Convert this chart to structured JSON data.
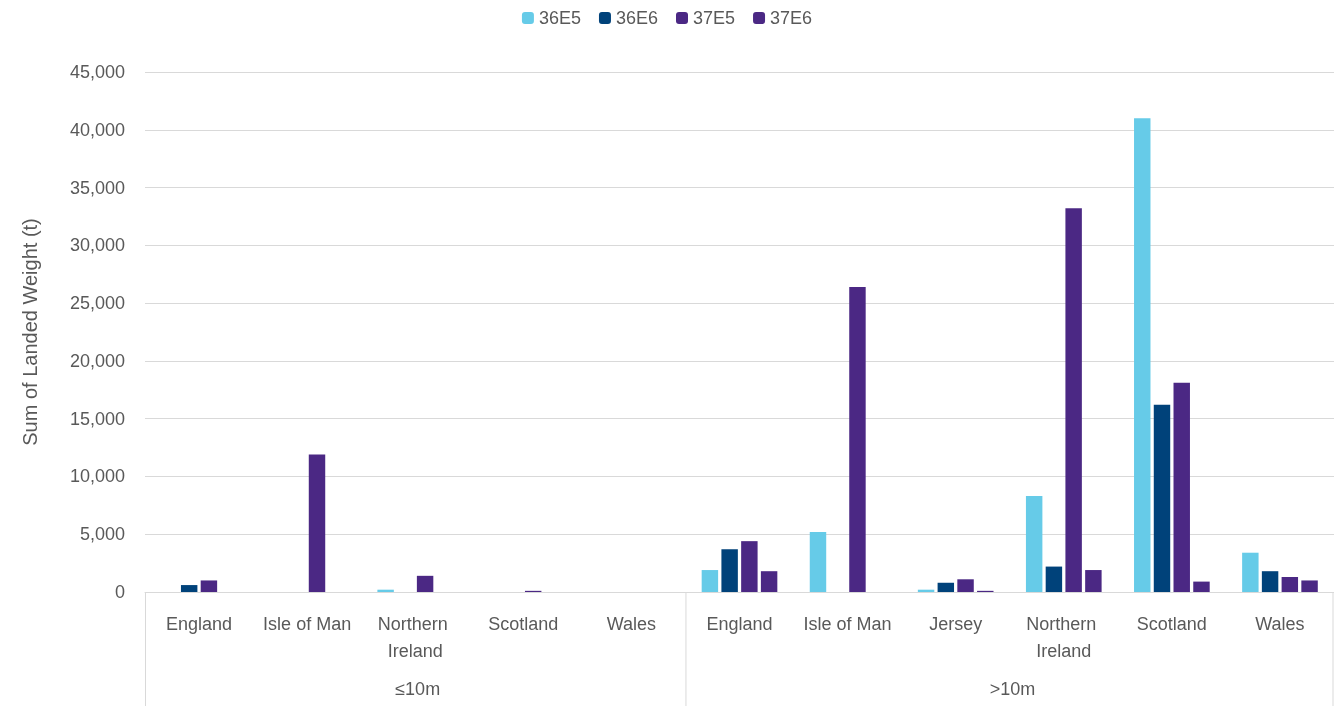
{
  "chart_data": {
    "type": "bar",
    "categories": [
      "England",
      "Isle of Man",
      "Northern Ireland",
      "Scotland",
      "Wales",
      "England",
      "Isle of Man",
      "Jersey",
      "Northern Ireland",
      "Scotland",
      "Wales"
    ],
    "series": [
      {
        "name": "36E5",
        "color": "#66cbe8",
        "values": [
          0,
          0,
          200,
          0,
          0,
          1900,
          5200,
          200,
          8300,
          41000,
          3400
        ]
      },
      {
        "name": "36E6",
        "color": "#00427a",
        "values": [
          600,
          0,
          0,
          0,
          0,
          3700,
          0,
          800,
          2200,
          16200,
          1800
        ]
      },
      {
        "name": "37E5",
        "color": "#4b2884",
        "values": [
          1000,
          11900,
          1400,
          100,
          0,
          4400,
          26400,
          1100,
          33200,
          18100,
          1300
        ]
      },
      {
        "name": "37E6",
        "color": "#4b2884",
        "values": [
          0,
          0,
          0,
          0,
          0,
          1800,
          0,
          100,
          1900,
          900,
          1000
        ]
      }
    ],
    "ylabel": "Sum of Landed Weight (t)",
    "ylim": [
      0,
      45000
    ],
    "yticks": [
      {
        "value": 0,
        "label": "0"
      },
      {
        "value": 5000,
        "label": "5,000"
      },
      {
        "value": 10000,
        "label": "10,000"
      },
      {
        "value": 15000,
        "label": "15,000"
      },
      {
        "value": 20000,
        "label": "20,000"
      },
      {
        "value": 25000,
        "label": "25,000"
      },
      {
        "value": 30000,
        "label": "30,000"
      },
      {
        "value": 35000,
        "label": "35,000"
      },
      {
        "value": 40000,
        "label": "40,000"
      },
      {
        "value": 45000,
        "label": "45,000"
      }
    ],
    "annotations": [
      "≤10m",
      ">10m"
    ],
    "grid": "y",
    "legend": "top"
  }
}
